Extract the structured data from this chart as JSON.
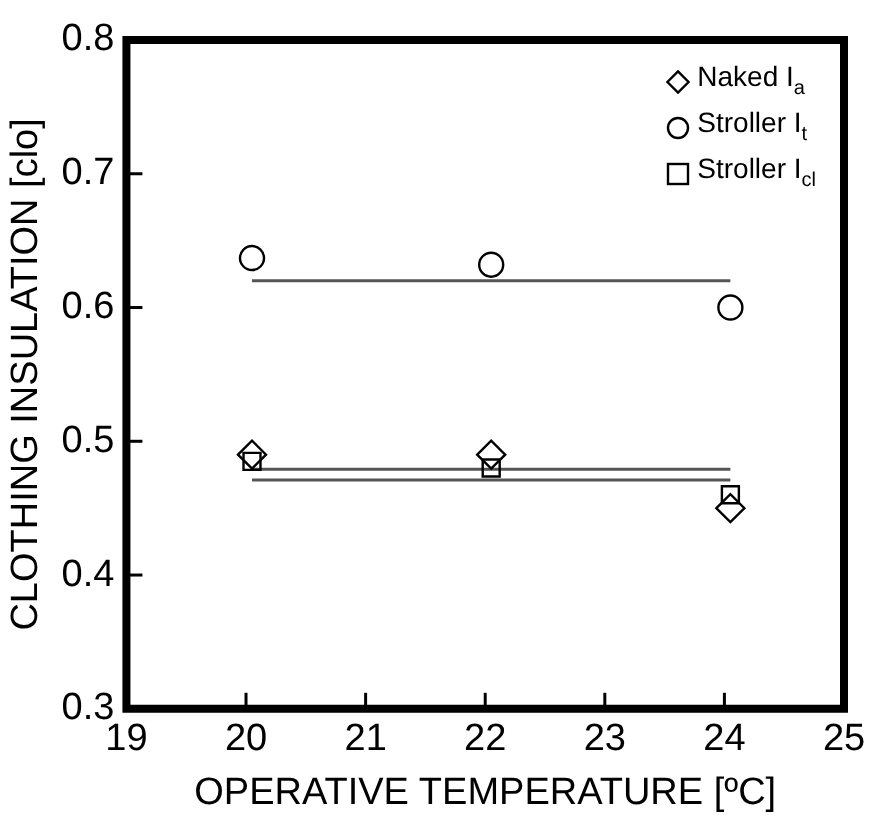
{
  "chart_data": {
    "type": "scatter",
    "xlabel": "OPERATIVE TEMPERATURE [ºC]",
    "ylabel": "CLOTHING INSULATION [clo]",
    "xlim": [
      19,
      25
    ],
    "xticks": [
      19,
      20,
      21,
      22,
      23,
      24,
      25
    ],
    "ylim": [
      0.3,
      0.8
    ],
    "yticks": [
      0.3,
      0.4,
      0.5,
      0.6,
      0.7,
      0.8
    ],
    "grid": false,
    "legend": "top right",
    "series": [
      {
        "name": "Naked I$_{a}$",
        "marker": "diamond",
        "color": "#000000",
        "x": [
          20.05,
          22.05,
          24.05
        ],
        "values": [
          0.49,
          0.49,
          0.45
        ]
      },
      {
        "name": "Stroller I$_{t}$",
        "marker": "circle",
        "color": "#000000",
        "x": [
          20.05,
          22.05,
          24.05
        ],
        "values": [
          0.637,
          0.632,
          0.6
        ]
      },
      {
        "name": "Stroller I$_{cl}$",
        "marker": "square",
        "color": "#000000",
        "x": [
          20.05,
          22.05,
          24.05
        ],
        "values": [
          0.485,
          0.48,
          0.46
        ]
      },
      {
        "type": "line",
        "color": "#555555",
        "x": [
          20.05,
          24.05
        ],
        "values": [
          0.62,
          0.62
        ]
      },
      {
        "type": "line",
        "color": "#555555",
        "x": [
          20.05,
          24.05
        ],
        "values": [
          0.479,
          0.479
        ]
      },
      {
        "type": "line",
        "color": "#555555",
        "x": [
          20.05,
          24.05
        ],
        "values": [
          0.471,
          0.471
        ]
      }
    ]
  }
}
